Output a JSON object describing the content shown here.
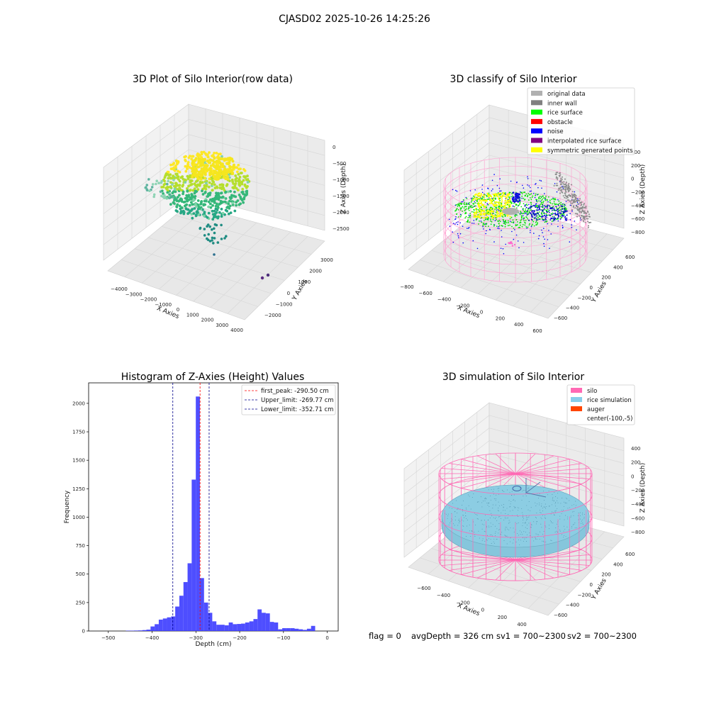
{
  "figure": {
    "suptitle": "CJASD02 2025-10-26 14:25:26",
    "footer": {
      "flag": "flag = 0",
      "avg_depth": "avgDepth = 326 cm",
      "sv1": "sv1 = 700~2300",
      "sv2": "sv2 = 700~2300"
    }
  },
  "chart_data": [
    {
      "type": "scatter",
      "panel": "top-left",
      "title": "3D Plot of Silo Interior(row data)",
      "xlabel": "X Axies",
      "ylabel": "Y Axies",
      "zlabel": "Z Axies (Depth)",
      "xticks": [
        "−4000",
        "−3000",
        "−2000",
        "−1000",
        "0",
        "1000",
        "2000",
        "3000",
        "4000"
      ],
      "yticks": [
        "−2000",
        "−1000",
        "0",
        "1000",
        "2000",
        "3000"
      ],
      "zticks": [
        "0",
        "−500",
        "−1000",
        "−1500",
        "−2000",
        "−2500"
      ],
      "colormap": [
        "#440154",
        "#31688e",
        "#35b779",
        "#fde725"
      ],
      "grid": true
    },
    {
      "type": "scatter",
      "panel": "top-right",
      "title": "3D classify of Silo Interior",
      "xlabel": "X Axies",
      "ylabel": "Y Axies",
      "zlabel": "Z Axies (Depth)",
      "xticks": [
        "−800",
        "−600",
        "−400",
        "−200",
        "0",
        "200",
        "400",
        "600"
      ],
      "yticks": [
        "−600",
        "−400",
        "−200",
        "0",
        "200",
        "400",
        "600"
      ],
      "zticks": [
        "400",
        "200",
        "0",
        "−200",
        "−400",
        "−600",
        "−800"
      ],
      "legend_position": "top-right",
      "legend": [
        {
          "label": "original data",
          "color": "#b0b0b0"
        },
        {
          "label": "inner wall",
          "color": "#808080"
        },
        {
          "label": "rice surface",
          "color": "#00ff00"
        },
        {
          "label": "obstacle",
          "color": "#ff0000"
        },
        {
          "label": "noise",
          "color": "#0000ff"
        },
        {
          "label": "interpolated rice surface",
          "color": "#800080"
        },
        {
          "label": "symmetric generated points",
          "color": "#ffff00"
        }
      ],
      "grid": true
    },
    {
      "type": "bar",
      "panel": "bottom-left",
      "title": "Histogram of Z-Axies (Height) Values",
      "xlabel": "Depth (cm)",
      "ylabel": "Frequency",
      "xlim": [
        -545,
        25
      ],
      "ylim": [
        0,
        2180
      ],
      "xticks": [
        -500,
        -400,
        -300,
        -200,
        -100,
        0
      ],
      "xtick_labels": [
        "−500",
        "−400",
        "−300",
        "−200",
        "−100",
        "0"
      ],
      "yticks": [
        0,
        250,
        500,
        750,
        1000,
        1250,
        1500,
        1750,
        2000
      ],
      "bin_width": 9.4,
      "bins": [
        {
          "x": -460,
          "count": 3
        },
        {
          "x": -450.6,
          "count": 3
        },
        {
          "x": -441.2,
          "count": 4
        },
        {
          "x": -431.8,
          "count": 5
        },
        {
          "x": -422.4,
          "count": 8
        },
        {
          "x": -413,
          "count": 12
        },
        {
          "x": -403.6,
          "count": 40
        },
        {
          "x": -394.2,
          "count": 60
        },
        {
          "x": -384.8,
          "count": 100
        },
        {
          "x": -375.4,
          "count": 110
        },
        {
          "x": -366,
          "count": 120
        },
        {
          "x": -356.6,
          "count": 128
        },
        {
          "x": -347.2,
          "count": 215
        },
        {
          "x": -337.8,
          "count": 310
        },
        {
          "x": -328.4,
          "count": 430
        },
        {
          "x": -319,
          "count": 595
        },
        {
          "x": -309.6,
          "count": 1330
        },
        {
          "x": -300.2,
          "count": 2060
        },
        {
          "x": -290.8,
          "count": 465
        },
        {
          "x": -281.4,
          "count": 250
        },
        {
          "x": -272,
          "count": 160
        },
        {
          "x": -262.6,
          "count": 85
        },
        {
          "x": -253.2,
          "count": 55
        },
        {
          "x": -243.8,
          "count": 55
        },
        {
          "x": -234.4,
          "count": 50
        },
        {
          "x": -225,
          "count": 75
        },
        {
          "x": -215.6,
          "count": 60
        },
        {
          "x": -206.2,
          "count": 62
        },
        {
          "x": -196.8,
          "count": 65
        },
        {
          "x": -187.4,
          "count": 75
        },
        {
          "x": -178,
          "count": 85
        },
        {
          "x": -168.6,
          "count": 105
        },
        {
          "x": -159.2,
          "count": 190
        },
        {
          "x": -149.8,
          "count": 160
        },
        {
          "x": -140.4,
          "count": 155
        },
        {
          "x": -131,
          "count": 80
        },
        {
          "x": -121.6,
          "count": 75
        },
        {
          "x": -112.2,
          "count": 15
        },
        {
          "x": -102.8,
          "count": 25
        },
        {
          "x": -93.4,
          "count": 25
        },
        {
          "x": -84,
          "count": 25
        },
        {
          "x": -74.6,
          "count": 20
        },
        {
          "x": -65.2,
          "count": 15
        },
        {
          "x": -55.8,
          "count": 10
        },
        {
          "x": -46.4,
          "count": 20
        },
        {
          "x": -37,
          "count": 45
        }
      ],
      "bar_color": "#3b3bff",
      "lines": [
        {
          "label": "first_peak: -290.50 cm",
          "x": -290.5,
          "color": "#ff0000"
        },
        {
          "label": "Upper_limit: -269.77 cm",
          "x": -269.77,
          "color": "#00008b"
        },
        {
          "label": "Lower_limit: -352.71 cm",
          "x": -352.71,
          "color": "#00008b"
        }
      ],
      "legend_position": "top-right"
    },
    {
      "type": "scatter",
      "panel": "bottom-right",
      "title": "3D simulation of Silo Interior",
      "xlabel": "X Axies",
      "ylabel": "Y Axies",
      "zlabel": "Z Axies (Depth)",
      "xticks": [
        "−600",
        "−400",
        "−200",
        "0",
        "200",
        "400"
      ],
      "yticks": [
        "−600",
        "−400",
        "−200",
        "0",
        "200",
        "400",
        "600"
      ],
      "zticks": [
        "400",
        "200",
        "0",
        "−200",
        "−400",
        "−600",
        "−800"
      ],
      "legend_position": "top-right",
      "legend": [
        {
          "label": "silo",
          "color": "#ff69b4"
        },
        {
          "label": "rice simulation",
          "color": "#87ceeb"
        },
        {
          "label": "auger",
          "color": "#ff4500"
        },
        {
          "label": "center(-100,-5)",
          "color": ""
        }
      ],
      "grid": true
    }
  ]
}
